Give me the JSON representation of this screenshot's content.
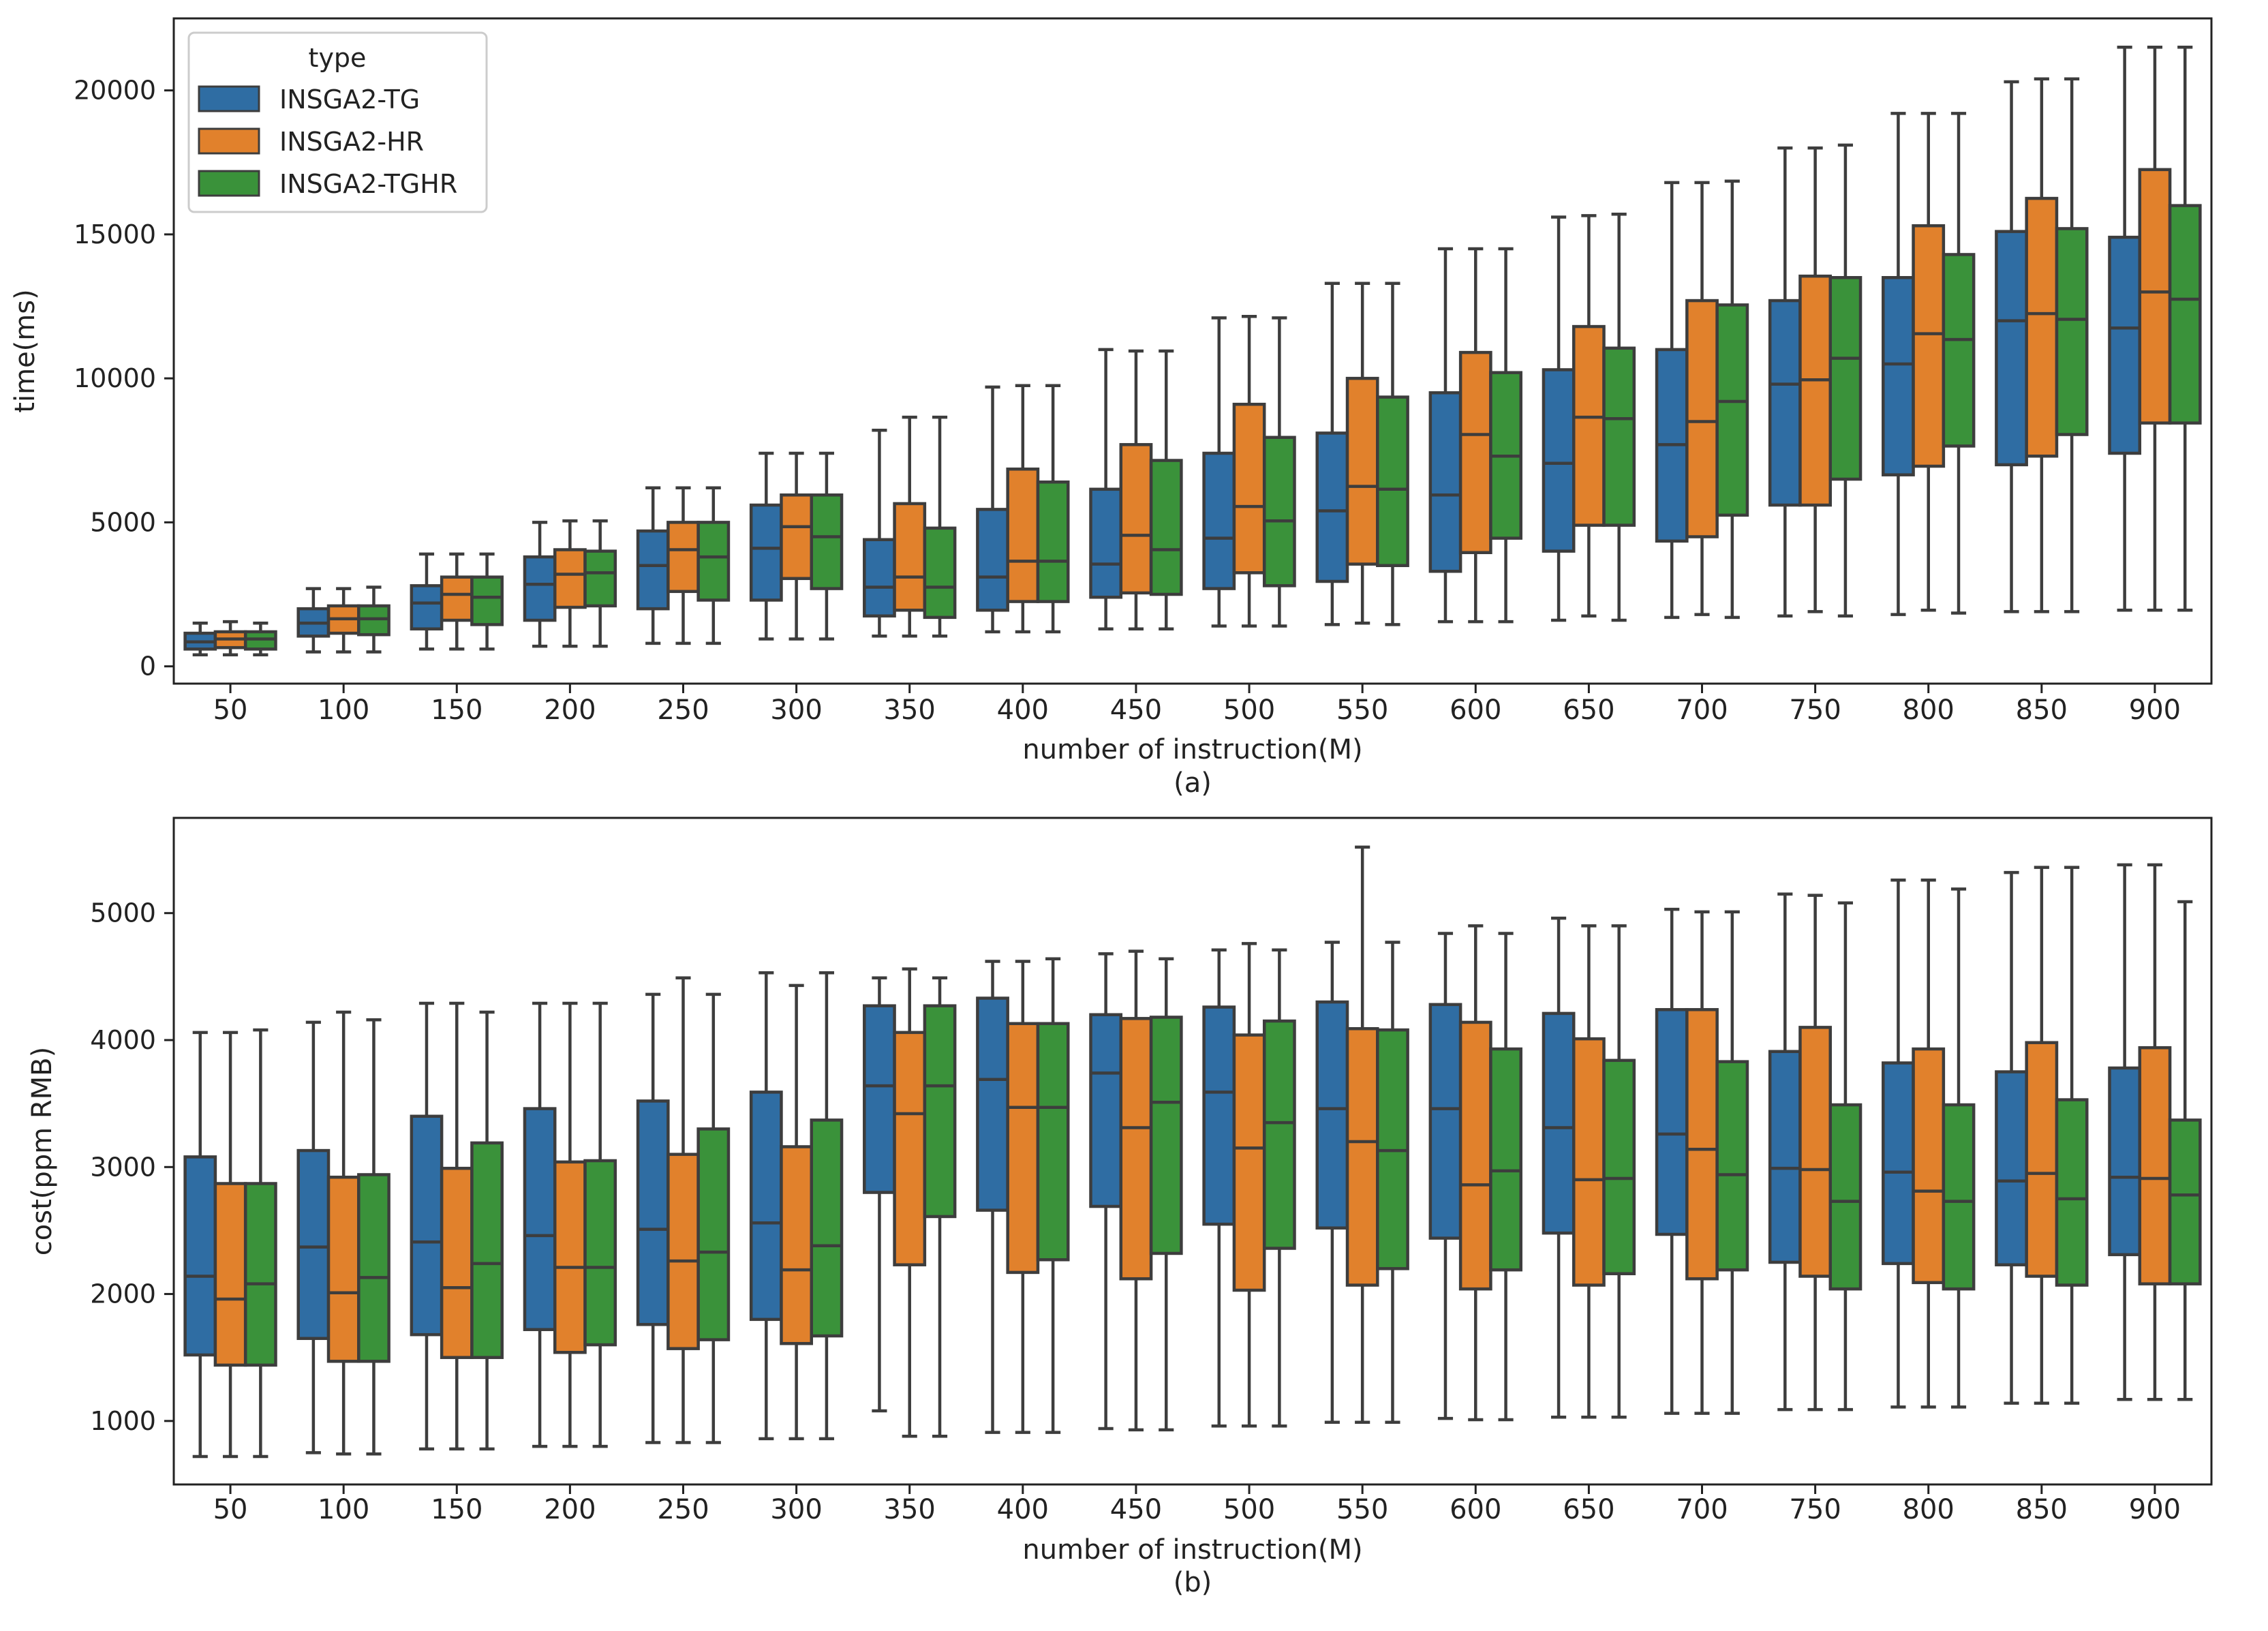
{
  "chart_data": [
    {
      "type": "boxplot",
      "caption": "(a)",
      "xlabel": "number of instruction(M)",
      "ylabel": "time(ms)",
      "ylim": [
        -600,
        22500
      ],
      "yticks": [
        0,
        5000,
        10000,
        15000,
        20000
      ],
      "categories": [
        "50",
        "100",
        "150",
        "200",
        "250",
        "300",
        "350",
        "400",
        "450",
        "500",
        "550",
        "600",
        "650",
        "700",
        "750",
        "800",
        "850",
        "900"
      ],
      "legend": {
        "title": "type",
        "position": "top-left"
      },
      "series": [
        {
          "name": "INSGA2-TG",
          "color": "#2f6da3",
          "boxes": [
            [
              400,
              600,
              850,
              1150,
              1500
            ],
            [
              500,
              1050,
              1500,
              2000,
              2700
            ],
            [
              600,
              1300,
              2200,
              2800,
              3900
            ],
            [
              700,
              1600,
              2850,
              3800,
              5000
            ],
            [
              800,
              2000,
              3500,
              4700,
              6200
            ],
            [
              950,
              2300,
              4100,
              5600,
              7400
            ],
            [
              1050,
              1750,
              2750,
              4400,
              8200
            ],
            [
              1200,
              1950,
              3100,
              5450,
              9700
            ],
            [
              1300,
              2400,
              3550,
              6150,
              11000
            ],
            [
              1400,
              2700,
              4450,
              7400,
              12100
            ],
            [
              1450,
              2950,
              5400,
              8100,
              13300
            ],
            [
              1550,
              3300,
              5950,
              9500,
              14500
            ],
            [
              1600,
              4000,
              7050,
              10300,
              15600
            ],
            [
              1700,
              4350,
              7700,
              11000,
              16800
            ],
            [
              1750,
              5600,
              9800,
              12700,
              18000
            ],
            [
              1800,
              6650,
              10500,
              13500,
              19200
            ],
            [
              1900,
              7000,
              12000,
              15100,
              20300
            ],
            [
              1950,
              7400,
              11750,
              14900,
              21500
            ]
          ]
        },
        {
          "name": "INSGA2-HR",
          "color": "#e1812c",
          "boxes": [
            [
              400,
              650,
              950,
              1200,
              1550
            ],
            [
              500,
              1150,
              1650,
              2100,
              2700
            ],
            [
              600,
              1600,
              2500,
              3100,
              3900
            ],
            [
              700,
              2050,
              3200,
              4050,
              5050
            ],
            [
              800,
              2600,
              4050,
              5000,
              6200
            ],
            [
              950,
              3050,
              4850,
              5950,
              7400
            ],
            [
              1050,
              1950,
              3100,
              5650,
              8650
            ],
            [
              1200,
              2250,
              3650,
              6850,
              9750
            ],
            [
              1300,
              2550,
              4550,
              7700,
              10950
            ],
            [
              1400,
              3250,
              5550,
              9100,
              12150
            ],
            [
              1500,
              3550,
              6250,
              10000,
              13300
            ],
            [
              1550,
              3950,
              8050,
              10900,
              14500
            ],
            [
              1750,
              4900,
              8650,
              11800,
              15650
            ],
            [
              1800,
              4500,
              8500,
              12700,
              16800
            ],
            [
              1900,
              5600,
              9950,
              13550,
              18000
            ],
            [
              1950,
              6950,
              11550,
              15300,
              19200
            ],
            [
              1900,
              7300,
              12250,
              16250,
              20400
            ],
            [
              1950,
              8450,
              13000,
              17250,
              21500
            ]
          ]
        },
        {
          "name": "INSGA2-TGHR",
          "color": "#3a923a",
          "boxes": [
            [
              400,
              600,
              950,
              1200,
              1500
            ],
            [
              500,
              1100,
              1650,
              2100,
              2750
            ],
            [
              600,
              1450,
              2400,
              3100,
              3900
            ],
            [
              700,
              2100,
              3250,
              4000,
              5050
            ],
            [
              800,
              2300,
              3800,
              5000,
              6200
            ],
            [
              950,
              2700,
              4500,
              5950,
              7400
            ],
            [
              1050,
              1700,
              2750,
              4800,
              8650
            ],
            [
              1200,
              2250,
              3650,
              6400,
              9750
            ],
            [
              1300,
              2500,
              4050,
              7150,
              10950
            ],
            [
              1400,
              2800,
              5050,
              7950,
              12100
            ],
            [
              1450,
              3500,
              6150,
              9350,
              13300
            ],
            [
              1550,
              4450,
              7300,
              10200,
              14500
            ],
            [
              1600,
              4900,
              8600,
              11050,
              15700
            ],
            [
              1700,
              5250,
              9200,
              12550,
              16850
            ],
            [
              1750,
              6500,
              10700,
              13500,
              18100
            ],
            [
              1850,
              7650,
              11350,
              14300,
              19200
            ],
            [
              1900,
              8050,
              12050,
              15200,
              20400
            ],
            [
              1950,
              8450,
              12750,
              16000,
              21500
            ]
          ]
        }
      ]
    },
    {
      "type": "boxplot",
      "caption": "(b)",
      "xlabel": "number of instruction(M)",
      "ylabel": "cost(ppm RMB)",
      "ylim": [
        500,
        5750
      ],
      "yticks": [
        1000,
        2000,
        3000,
        4000,
        5000
      ],
      "categories": [
        "50",
        "100",
        "150",
        "200",
        "250",
        "300",
        "350",
        "400",
        "450",
        "500",
        "550",
        "600",
        "650",
        "700",
        "750",
        "800",
        "850",
        "900"
      ],
      "series": [
        {
          "name": "INSGA2-TG",
          "color": "#2f6da3",
          "boxes": [
            [
              720,
              1520,
              2140,
              3080,
              4060
            ],
            [
              750,
              1650,
              2370,
              3130,
              4140
            ],
            [
              780,
              1680,
              2410,
              3400,
              4290
            ],
            [
              800,
              1720,
              2460,
              3460,
              4290
            ],
            [
              830,
              1760,
              2510,
              3520,
              4360
            ],
            [
              860,
              1800,
              2560,
              3590,
              4530
            ],
            [
              1080,
              2800,
              3640,
              4270,
              4490
            ],
            [
              910,
              2660,
              3690,
              4330,
              4620
            ],
            [
              940,
              2690,
              3740,
              4200,
              4680
            ],
            [
              960,
              2550,
              3590,
              4260,
              4710
            ],
            [
              990,
              2520,
              3460,
              4300,
              4770
            ],
            [
              1020,
              2440,
              3460,
              4280,
              4840
            ],
            [
              1030,
              2480,
              3310,
              4210,
              4960
            ],
            [
              1060,
              2470,
              3260,
              4240,
              5030
            ],
            [
              1090,
              2250,
              2990,
              3910,
              5150
            ],
            [
              1110,
              2240,
              2960,
              3820,
              5260
            ],
            [
              1140,
              2230,
              2890,
              3750,
              5320
            ],
            [
              1170,
              2310,
              2920,
              3780,
              5380
            ]
          ]
        },
        {
          "name": "INSGA2-HR",
          "color": "#e1812c",
          "boxes": [
            [
              720,
              1440,
              1960,
              2870,
              4060
            ],
            [
              740,
              1470,
              2010,
              2920,
              4220
            ],
            [
              780,
              1500,
              2050,
              2990,
              4290
            ],
            [
              800,
              1540,
              2210,
              3040,
              4290
            ],
            [
              830,
              1570,
              2260,
              3100,
              4490
            ],
            [
              860,
              1610,
              2190,
              3160,
              4430
            ],
            [
              880,
              2230,
              3420,
              4060,
              4560
            ],
            [
              910,
              2170,
              3470,
              4130,
              4620
            ],
            [
              930,
              2120,
              3310,
              4170,
              4700
            ],
            [
              960,
              2030,
              3150,
              4040,
              4760
            ],
            [
              990,
              2070,
              3200,
              4090,
              5520
            ],
            [
              1010,
              2040,
              2860,
              4140,
              4900
            ],
            [
              1030,
              2070,
              2900,
              4010,
              4900
            ],
            [
              1060,
              2120,
              3140,
              4240,
              5010
            ],
            [
              1090,
              2140,
              2980,
              4100,
              5140
            ],
            [
              1110,
              2090,
              2810,
              3930,
              5260
            ],
            [
              1140,
              2140,
              2950,
              3980,
              5360
            ],
            [
              1170,
              2080,
              2910,
              3940,
              5380
            ]
          ]
        },
        {
          "name": "INSGA2-TGHR",
          "color": "#3a923a",
          "boxes": [
            [
              720,
              1440,
              2080,
              2870,
              4080
            ],
            [
              740,
              1470,
              2130,
              2940,
              4160
            ],
            [
              780,
              1500,
              2240,
              3190,
              4220
            ],
            [
              800,
              1600,
              2210,
              3050,
              4290
            ],
            [
              830,
              1640,
              2330,
              3300,
              4360
            ],
            [
              860,
              1670,
              2380,
              3370,
              4530
            ],
            [
              880,
              2610,
              3640,
              4270,
              4490
            ],
            [
              910,
              2270,
              3470,
              4130,
              4640
            ],
            [
              930,
              2320,
              3510,
              4180,
              4640
            ],
            [
              960,
              2360,
              3350,
              4150,
              4710
            ],
            [
              990,
              2200,
              3130,
              4080,
              4770
            ],
            [
              1010,
              2190,
              2970,
              3930,
              4840
            ],
            [
              1030,
              2160,
              2910,
              3840,
              4900
            ],
            [
              1060,
              2190,
              2940,
              3830,
              5010
            ],
            [
              1090,
              2040,
              2730,
              3490,
              5080
            ],
            [
              1110,
              2040,
              2730,
              3490,
              5190
            ],
            [
              1140,
              2070,
              2750,
              3530,
              5360
            ],
            [
              1170,
              2080,
              2780,
              3370,
              5090
            ]
          ]
        }
      ]
    }
  ]
}
